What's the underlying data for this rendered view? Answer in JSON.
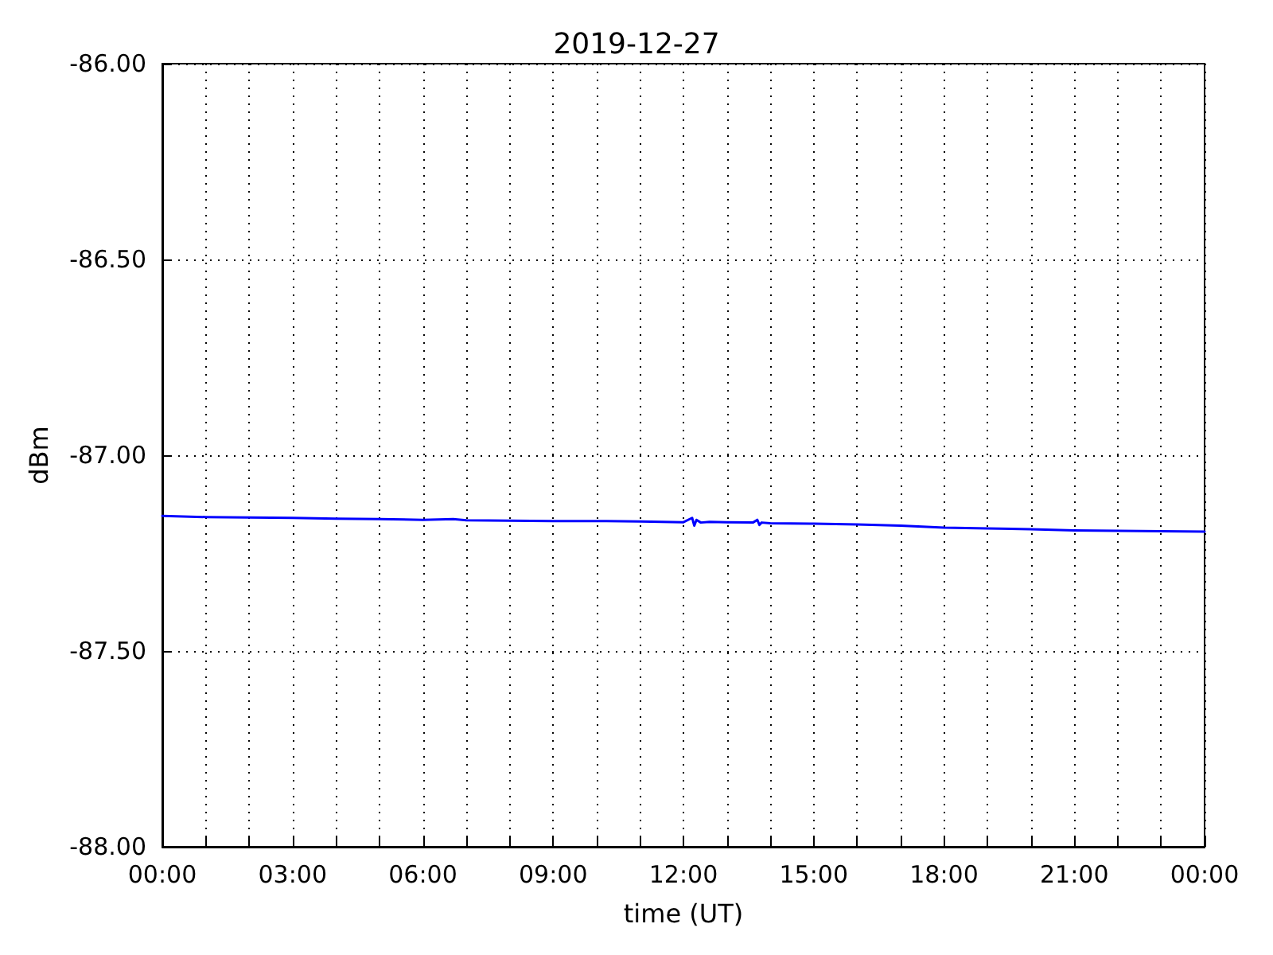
{
  "chart_data": {
    "type": "line",
    "title": "2019-12-27",
    "xlabel": "time (UT)",
    "ylabel": "dBm",
    "series": [
      {
        "color": "#0000ff",
        "x": [
          0,
          1,
          2,
          3,
          4,
          5,
          6,
          6.7,
          7,
          8,
          9,
          10,
          11,
          12,
          12.2,
          12.25,
          12.3,
          12.4,
          12.6,
          13,
          13.6,
          13.7,
          13.75,
          13.8,
          14,
          15,
          16,
          17,
          18,
          19,
          20,
          21,
          22,
          23,
          24
        ],
        "values": [
          -87.155,
          -87.158,
          -87.159,
          -87.16,
          -87.162,
          -87.163,
          -87.165,
          -87.163,
          -87.166,
          -87.167,
          -87.168,
          -87.168,
          -87.169,
          -87.171,
          -87.16,
          -87.18,
          -87.165,
          -87.172,
          -87.17,
          -87.171,
          -87.172,
          -87.165,
          -87.178,
          -87.172,
          -87.174,
          -87.175,
          -87.177,
          -87.18,
          -87.185,
          -87.187,
          -87.189,
          -87.192,
          -87.193,
          -87.194,
          -87.195
        ]
      }
    ],
    "xlim": [
      0,
      24
    ],
    "xticks": [
      {
        "value": 0,
        "label": "00:00"
      },
      {
        "value": 1,
        "label": null
      },
      {
        "value": 2,
        "label": null
      },
      {
        "value": 3,
        "label": "03:00"
      },
      {
        "value": 4,
        "label": null
      },
      {
        "value": 5,
        "label": null
      },
      {
        "value": 6,
        "label": "06:00"
      },
      {
        "value": 7,
        "label": null
      },
      {
        "value": 8,
        "label": null
      },
      {
        "value": 9,
        "label": "09:00"
      },
      {
        "value": 10,
        "label": null
      },
      {
        "value": 11,
        "label": null
      },
      {
        "value": 12,
        "label": "12:00"
      },
      {
        "value": 13,
        "label": null
      },
      {
        "value": 14,
        "label": null
      },
      {
        "value": 15,
        "label": "15:00"
      },
      {
        "value": 16,
        "label": null
      },
      {
        "value": 17,
        "label": null
      },
      {
        "value": 18,
        "label": "18:00"
      },
      {
        "value": 19,
        "label": null
      },
      {
        "value": 20,
        "label": null
      },
      {
        "value": 21,
        "label": "21:00"
      },
      {
        "value": 22,
        "label": null
      },
      {
        "value": 23,
        "label": null
      },
      {
        "value": 24,
        "label": "00:00"
      }
    ],
    "ylim": [
      -88,
      -86
    ],
    "yticks": [
      {
        "value": -88,
        "label": "-88.00"
      },
      {
        "value": -87.5,
        "label": "-87.50"
      },
      {
        "value": -87,
        "label": "-87.00"
      },
      {
        "value": -86.5,
        "label": "-86.50"
      },
      {
        "value": -86,
        "label": "-86.00"
      }
    ],
    "grid": true,
    "marker": "none",
    "line_style": "solid"
  }
}
